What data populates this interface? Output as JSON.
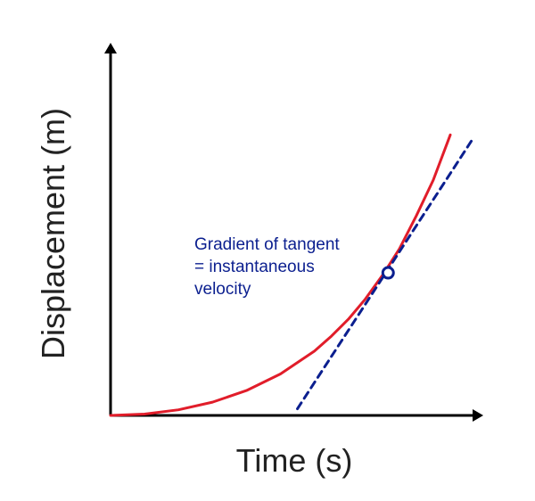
{
  "chart_data": {
    "type": "line",
    "title": "",
    "xlabel": "Time (s)",
    "ylabel": "Displacement (m)",
    "xlim": [
      0,
      10
    ],
    "ylim": [
      0,
      10
    ],
    "grid": false,
    "series": [
      {
        "kind": "curve",
        "color": "#e11d2a",
        "x": [
          0,
          1,
          2,
          3,
          4,
          5,
          6,
          6.5,
          7,
          7.5,
          8,
          8.5,
          9,
          9.5,
          10
        ],
        "y": [
          0,
          0.04,
          0.17,
          0.4,
          0.75,
          1.25,
          1.94,
          2.39,
          2.9,
          3.51,
          4.22,
          5.02,
          6.02,
          7.1,
          8.46
        ]
      },
      {
        "kind": "tangent-line",
        "style": "dashed",
        "color": "#0b1f8f",
        "x": [
          5.5,
          10.7
        ],
        "y": [
          0.2,
          8.4
        ]
      }
    ],
    "point": {
      "x": 8.17,
      "y": 4.3,
      "color": "#0b1f8f"
    },
    "annotation": {
      "lines": [
        "Gradient of tangent",
        "= instantaneous",
        "velocity"
      ],
      "color": "#0b1f8f"
    },
    "axis_color": "#000000"
  }
}
